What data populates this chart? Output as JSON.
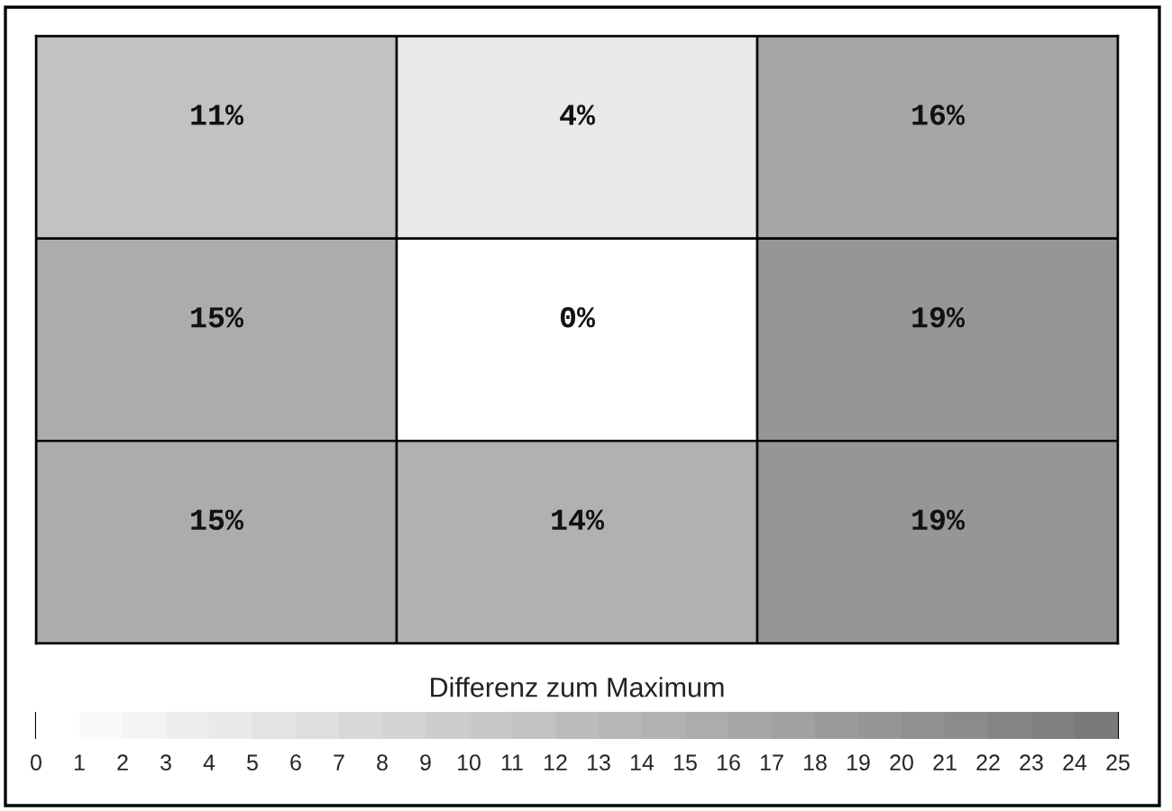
{
  "chart_data": {
    "type": "heatmap",
    "categories": [
      null,
      null,
      null
    ],
    "y_categories": [
      null,
      null,
      null
    ],
    "cells": [
      [
        11,
        4,
        16
      ],
      [
        15,
        0,
        19
      ],
      [
        15,
        14,
        19
      ]
    ],
    "cell_labels": [
      [
        "11%",
        "4%",
        "16%"
      ],
      [
        "15%",
        "0%",
        "19%"
      ],
      [
        "15%",
        "14%",
        "19%"
      ]
    ],
    "clabel": "Differenz zum Maximum",
    "clim": [
      0,
      25
    ],
    "cticks": [
      0,
      1,
      2,
      3,
      4,
      5,
      6,
      7,
      8,
      9,
      10,
      11,
      12,
      13,
      14,
      15,
      16,
      17,
      18,
      19,
      20,
      21,
      22,
      23,
      24,
      25
    ]
  }
}
